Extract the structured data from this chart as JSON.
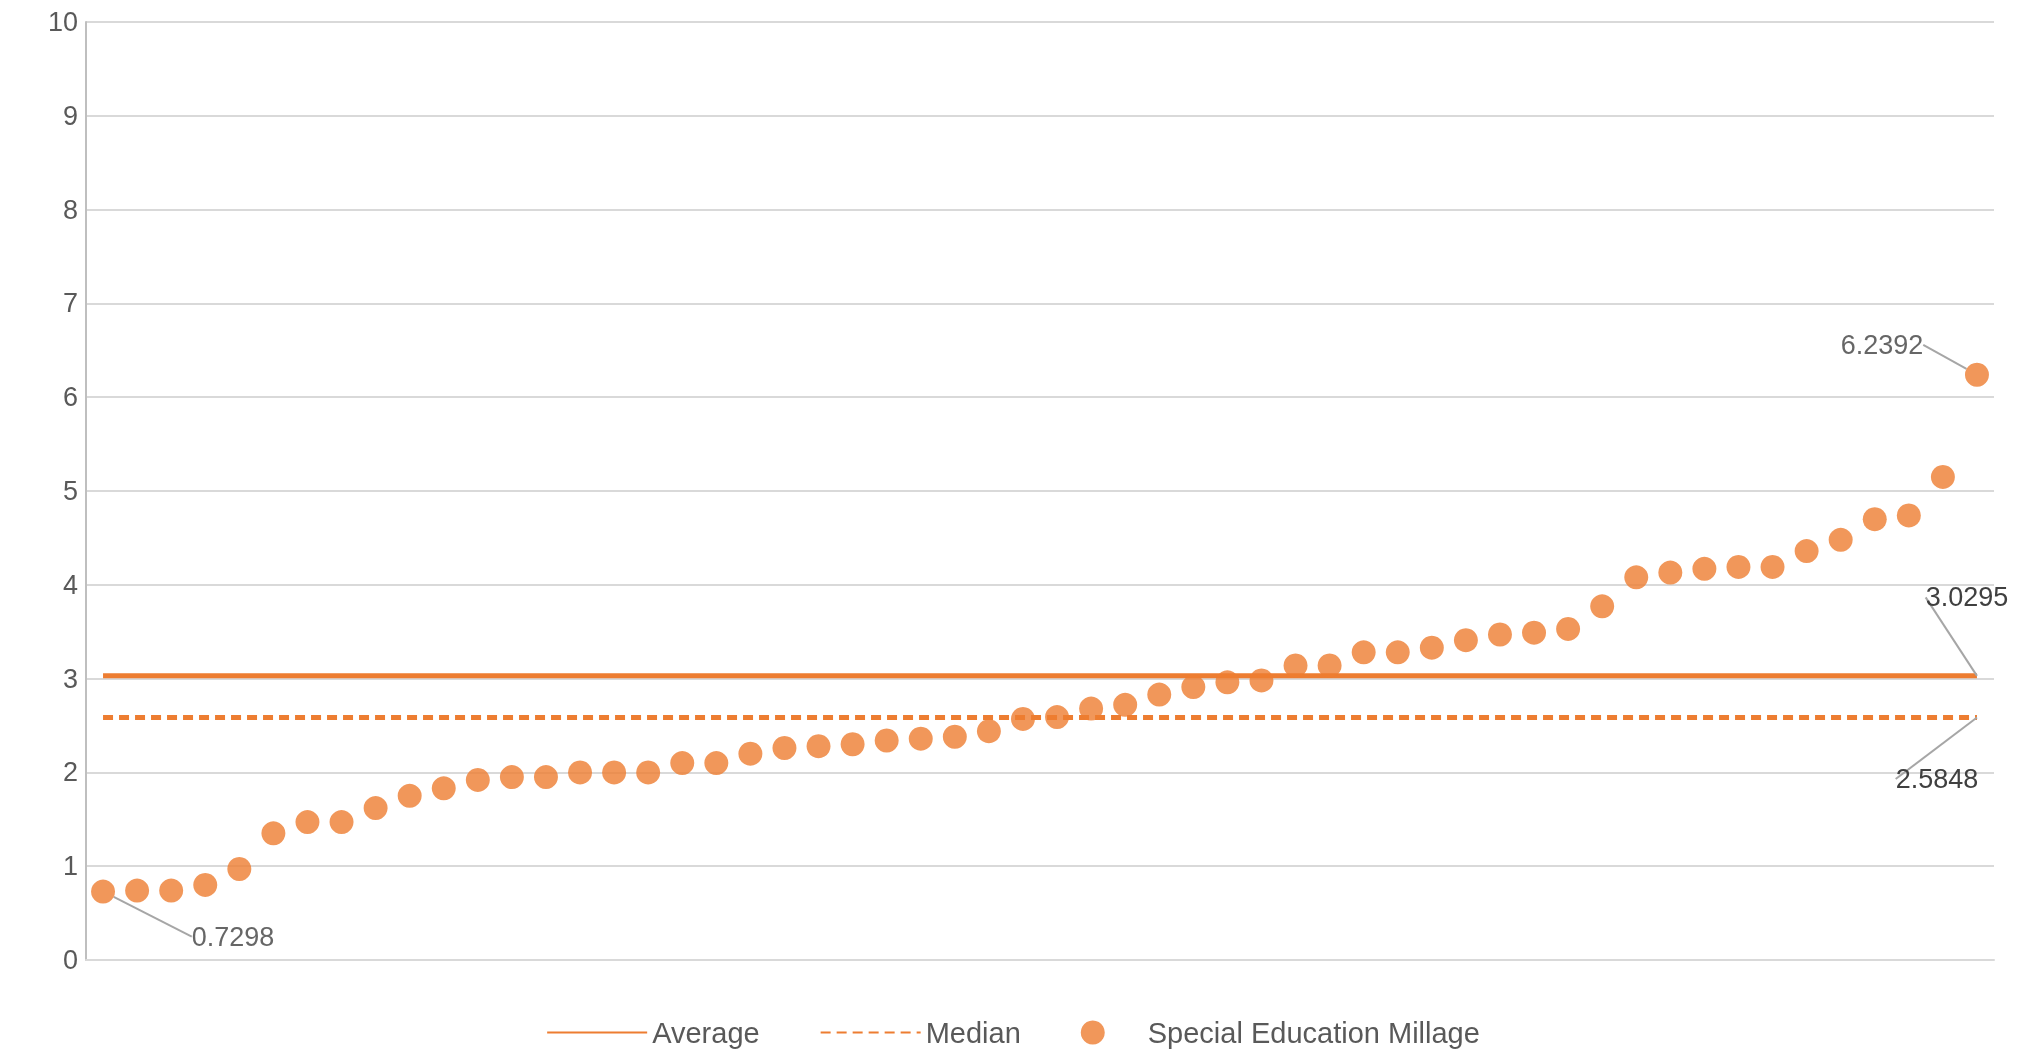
{
  "chart_data": {
    "type": "scatter",
    "categories": [
      null,
      null,
      null,
      null,
      null,
      null,
      null,
      null,
      null,
      null,
      null,
      null,
      null,
      null,
      null,
      null,
      null,
      null,
      null,
      null,
      null,
      null,
      null,
      null,
      null,
      null,
      null,
      null,
      null,
      null,
      null,
      null,
      null,
      null,
      null,
      null,
      null,
      null,
      null,
      null,
      null,
      null,
      null,
      null,
      null,
      null,
      null,
      null,
      null,
      null,
      null,
      null,
      null,
      null,
      null,
      null
    ],
    "series": [
      {
        "name": "Average",
        "type": "line",
        "color": "#ed7d31",
        "line_style": "solid",
        "values": [
          3.0295,
          3.0295,
          3.0295,
          3.0295,
          3.0295,
          3.0295,
          3.0295,
          3.0295,
          3.0295,
          3.0295,
          3.0295,
          3.0295,
          3.0295,
          3.0295,
          3.0295,
          3.0295,
          3.0295,
          3.0295,
          3.0295,
          3.0295,
          3.0295,
          3.0295,
          3.0295,
          3.0295,
          3.0295,
          3.0295,
          3.0295,
          3.0295,
          3.0295,
          3.0295,
          3.0295,
          3.0295,
          3.0295,
          3.0295,
          3.0295,
          3.0295,
          3.0295,
          3.0295,
          3.0295,
          3.0295,
          3.0295,
          3.0295,
          3.0295,
          3.0295,
          3.0295,
          3.0295,
          3.0295,
          3.0295,
          3.0295,
          3.0295,
          3.0295,
          3.0295,
          3.0295,
          3.0295,
          3.0295,
          3.0295
        ],
        "value_labels": [
          null,
          null,
          null,
          null,
          null,
          null,
          null,
          null,
          null,
          null,
          null,
          null,
          null,
          null,
          null,
          null,
          null,
          null,
          null,
          null,
          null,
          null,
          null,
          null,
          null,
          null,
          null,
          null,
          null,
          null,
          null,
          null,
          null,
          null,
          null,
          null,
          null,
          null,
          null,
          null,
          null,
          null,
          null,
          null,
          null,
          null,
          null,
          null,
          null,
          null,
          null,
          null,
          null,
          null,
          null,
          "3.0295"
        ]
      },
      {
        "name": "Median",
        "type": "line",
        "color": "#ed7d31",
        "line_style": "dashed",
        "values": [
          2.5848,
          2.5848,
          2.5848,
          2.5848,
          2.5848,
          2.5848,
          2.5848,
          2.5848,
          2.5848,
          2.5848,
          2.5848,
          2.5848,
          2.5848,
          2.5848,
          2.5848,
          2.5848,
          2.5848,
          2.5848,
          2.5848,
          2.5848,
          2.5848,
          2.5848,
          2.5848,
          2.5848,
          2.5848,
          2.5848,
          2.5848,
          2.5848,
          2.5848,
          2.5848,
          2.5848,
          2.5848,
          2.5848,
          2.5848,
          2.5848,
          2.5848,
          2.5848,
          2.5848,
          2.5848,
          2.5848,
          2.5848,
          2.5848,
          2.5848,
          2.5848,
          2.5848,
          2.5848,
          2.5848,
          2.5848,
          2.5848,
          2.5848,
          2.5848,
          2.5848,
          2.5848,
          2.5848,
          2.5848,
          2.5848
        ],
        "value_labels": [
          null,
          null,
          null,
          null,
          null,
          null,
          null,
          null,
          null,
          null,
          null,
          null,
          null,
          null,
          null,
          null,
          null,
          null,
          null,
          null,
          null,
          null,
          null,
          null,
          null,
          null,
          null,
          null,
          null,
          null,
          null,
          null,
          null,
          null,
          null,
          null,
          null,
          null,
          null,
          null,
          null,
          null,
          null,
          null,
          null,
          null,
          null,
          null,
          null,
          null,
          null,
          null,
          null,
          null,
          null,
          "2.5848"
        ]
      },
      {
        "name": "Special Education Millage",
        "type": "scatter",
        "color": "#ed7d31",
        "marker": "circle",
        "values": [
          0.7298,
          0.74,
          0.74,
          0.8,
          0.97,
          1.35,
          1.47,
          1.47,
          1.62,
          1.75,
          1.83,
          1.92,
          1.95,
          1.95,
          2.0,
          2.0,
          2.0,
          2.1,
          2.1,
          2.2,
          2.26,
          2.28,
          2.3,
          2.34,
          2.36,
          2.38,
          2.44,
          2.57,
          2.59,
          2.68,
          2.72,
          2.83,
          2.91,
          2.96,
          2.98,
          3.14,
          3.14,
          3.28,
          3.28,
          3.33,
          3.41,
          3.47,
          3.49,
          3.53,
          3.77,
          4.08,
          4.13,
          4.17,
          4.19,
          4.19,
          4.36,
          4.48,
          4.7,
          4.74,
          5.15,
          6.2392
        ],
        "value_labels": [
          "0.7298",
          null,
          null,
          null,
          null,
          null,
          null,
          null,
          null,
          null,
          null,
          null,
          null,
          null,
          null,
          null,
          null,
          null,
          null,
          null,
          null,
          null,
          null,
          null,
          null,
          null,
          null,
          null,
          null,
          null,
          null,
          null,
          null,
          null,
          null,
          null,
          null,
          null,
          null,
          null,
          null,
          null,
          null,
          null,
          null,
          null,
          null,
          null,
          null,
          null,
          null,
          null,
          null,
          null,
          null,
          "6.2392"
        ]
      }
    ],
    "ylim": [
      0,
      10
    ],
    "yticks": [
      0,
      1,
      2,
      3,
      4,
      5,
      6,
      7,
      8,
      9,
      10
    ],
    "grid": "y",
    "legend": "bottom"
  }
}
